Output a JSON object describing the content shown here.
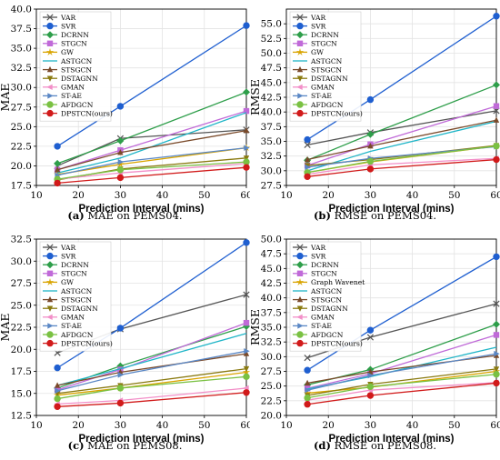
{
  "chart_data": [
    {
      "id": "a",
      "type": "line",
      "caption_letter": "(a)",
      "caption_text": "MAE on PEMS04.",
      "xlabel": "Prediction Interval (mins)",
      "ylabel": "MAE",
      "xlim": [
        10,
        60
      ],
      "ylim": [
        17.5,
        40.0
      ],
      "xticks": [
        "10",
        "20",
        "30",
        "40",
        "50",
        "60"
      ],
      "yticks": [
        "17.5",
        "20.0",
        "22.5",
        "25.0",
        "27.5",
        "30.0",
        "32.5",
        "35.0",
        "37.5",
        "40.0"
      ],
      "x": [
        15,
        30,
        60
      ],
      "series": [
        {
          "name": "VAR",
          "color": "#555555",
          "marker": "x",
          "values": [
            20.0,
            23.5,
            24.6
          ]
        },
        {
          "name": "SVR",
          "color": "#1f5fd0",
          "marker": "circle",
          "values": [
            22.5,
            27.6,
            37.9
          ]
        },
        {
          "name": "DCRNN",
          "color": "#2e9e4a",
          "marker": "diamond",
          "values": [
            20.3,
            23.2,
            29.4
          ]
        },
        {
          "name": "STGCN",
          "color": "#c06ad8",
          "marker": "square",
          "values": [
            19.5,
            22.0,
            27.0
          ]
        },
        {
          "name": "GW",
          "color": "#d9a400",
          "marker": "star",
          "values": [
            18.9,
            20.2,
            22.3
          ]
        },
        {
          "name": "ASTGCN",
          "color": "#1fb5c7",
          "marker": "none",
          "values": [
            19.1,
            21.0,
            26.8
          ]
        },
        {
          "name": "STSGCN",
          "color": "#7a4a2a",
          "marker": "triangle-up",
          "values": [
            19.5,
            21.7,
            24.5
          ]
        },
        {
          "name": "DSTAGNN",
          "color": "#8a7a10",
          "marker": "triangle-down",
          "values": [
            18.2,
            19.6,
            21.0
          ]
        },
        {
          "name": "GMAN",
          "color": "#f28fc8",
          "marker": "triangle-left",
          "values": [
            18.3,
            19.1,
            20.3
          ]
        },
        {
          "name": "ST-AE",
          "color": "#5a87c5",
          "marker": "triangle-right",
          "values": [
            18.8,
            20.5,
            22.3
          ]
        },
        {
          "name": "AFDGCN",
          "color": "#7ac143",
          "marker": "circle",
          "values": [
            18.3,
            19.5,
            20.5
          ]
        },
        {
          "name": "DPSTCN(ours)",
          "color": "#d11a1a",
          "marker": "circle",
          "values": [
            17.8,
            18.5,
            19.8
          ]
        }
      ]
    },
    {
      "id": "b",
      "type": "line",
      "caption_letter": "(b)",
      "caption_text": "RMSE on PEMS04.",
      "xlabel": "Prediction Interval (mins)",
      "ylabel": "RMSE",
      "xlim": [
        10,
        60
      ],
      "ylim": [
        27.5,
        57.5
      ],
      "xticks": [
        "10",
        "20",
        "30",
        "40",
        "50",
        "60"
      ],
      "yticks": [
        "27.5",
        "30.0",
        "32.5",
        "35.0",
        "37.5",
        "40.0",
        "42.5",
        "45.0",
        "47.5",
        "50.0",
        "52.5",
        "55.0"
      ],
      "x": [
        15,
        30,
        60
      ],
      "series": [
        {
          "name": "VAR",
          "color": "#555555",
          "marker": "x",
          "values": [
            34.4,
            36.5,
            40.2
          ]
        },
        {
          "name": "SVR",
          "color": "#1f5fd0",
          "marker": "circle",
          "values": [
            35.3,
            42.1,
            56.3
          ]
        },
        {
          "name": "DCRNN",
          "color": "#2e9e4a",
          "marker": "diamond",
          "values": [
            31.8,
            36.2,
            44.6
          ]
        },
        {
          "name": "STGCN",
          "color": "#c06ad8",
          "marker": "square",
          "values": [
            30.9,
            34.5,
            41.0
          ]
        },
        {
          "name": "GW",
          "color": "#d9a400",
          "marker": "star",
          "values": [
            29.7,
            31.5,
            34.2
          ]
        },
        {
          "name": "ASTGCN",
          "color": "#1fb5c7",
          "marker": "none",
          "values": [
            30.0,
            33.3,
            38.4
          ]
        },
        {
          "name": "STSGCN",
          "color": "#7a4a2a",
          "marker": "triangle-up",
          "values": [
            31.9,
            34.2,
            38.6
          ]
        },
        {
          "name": "DSTAGNN",
          "color": "#8a7a10",
          "marker": "triangle-down",
          "values": [
            30.9,
            31.9,
            34.3
          ]
        },
        {
          "name": "GMAN",
          "color": "#f28fc8",
          "marker": "triangle-left",
          "values": [
            29.4,
            31.0,
            32.1
          ]
        },
        {
          "name": "ST-AE",
          "color": "#5a87c5",
          "marker": "triangle-right",
          "values": [
            30.6,
            32.1,
            34.1
          ]
        },
        {
          "name": "AFDGCN",
          "color": "#7ac143",
          "marker": "circle",
          "values": [
            29.7,
            31.6,
            34.2
          ]
        },
        {
          "name": "DPSTCN(ours)",
          "color": "#d11a1a",
          "marker": "circle",
          "values": [
            29.0,
            30.3,
            31.9
          ]
        }
      ]
    },
    {
      "id": "c",
      "type": "line",
      "caption_letter": "(c)",
      "caption_text": "MAE on PEMS08.",
      "xlabel": "Prediction Interval (mins)",
      "ylabel": "MAE",
      "xlim": [
        10,
        60
      ],
      "ylim": [
        12.5,
        32.5
      ],
      "xticks": [
        "10",
        "20",
        "30",
        "40",
        "50",
        "60"
      ],
      "yticks": [
        "12.5",
        "15.0",
        "17.5",
        "20.0",
        "22.5",
        "25.0",
        "27.5",
        "30.0",
        "32.5"
      ],
      "x": [
        15,
        30,
        60
      ],
      "series": [
        {
          "name": "VAR",
          "color": "#555555",
          "marker": "x",
          "values": [
            19.6,
            22.3,
            26.2
          ]
        },
        {
          "name": "SVR",
          "color": "#1f5fd0",
          "marker": "circle",
          "values": [
            17.9,
            22.4,
            32.1
          ]
        },
        {
          "name": "DCRNN",
          "color": "#2e9e4a",
          "marker": "diamond",
          "values": [
            15.6,
            18.1,
            22.6
          ]
        },
        {
          "name": "STGCN",
          "color": "#c06ad8",
          "marker": "square",
          "values": [
            15.4,
            17.7,
            23.0
          ]
        },
        {
          "name": "GW",
          "color": "#d9a400",
          "marker": "star",
          "values": [
            14.8,
            15.6,
            17.4
          ]
        },
        {
          "name": "ASTGCN",
          "color": "#1fb5c7",
          "marker": "none",
          "values": [
            15.9,
            17.8,
            21.8
          ]
        },
        {
          "name": "STSGCN",
          "color": "#7a4a2a",
          "marker": "triangle-up",
          "values": [
            15.9,
            17.4,
            19.5
          ]
        },
        {
          "name": "DSTAGNN",
          "color": "#8a7a10",
          "marker": "triangle-down",
          "values": [
            15.0,
            15.9,
            17.8
          ]
        },
        {
          "name": "GMAN",
          "color": "#f28fc8",
          "marker": "triangle-left",
          "values": [
            13.8,
            14.2,
            15.6
          ]
        },
        {
          "name": "ST-AE",
          "color": "#5a87c5",
          "marker": "triangle-right",
          "values": [
            15.3,
            17.1,
            19.8
          ]
        },
        {
          "name": "AFDGCN",
          "color": "#7ac143",
          "marker": "circle",
          "values": [
            14.4,
            15.6,
            16.9
          ]
        },
        {
          "name": "DPSTCN(ours)",
          "color": "#d11a1a",
          "marker": "circle",
          "values": [
            13.5,
            13.9,
            15.1
          ]
        }
      ]
    },
    {
      "id": "d",
      "type": "line",
      "caption_letter": "(d)",
      "caption_text": "RMSE on PEMS08.",
      "xlabel": "Prediction Interval (mins)",
      "ylabel": "RMSE",
      "xlim": [
        10,
        60
      ],
      "ylim": [
        20.0,
        50.0
      ],
      "xticks": [
        "10",
        "20",
        "30",
        "40",
        "50",
        "60"
      ],
      "yticks": [
        "20.0",
        "22.5",
        "25.0",
        "27.5",
        "30.0",
        "32.5",
        "35.0",
        "37.5",
        "40.0",
        "42.5",
        "45.0",
        "47.5",
        "50.0"
      ],
      "x": [
        15,
        30,
        60
      ],
      "series": [
        {
          "name": "VAR",
          "color": "#555555",
          "marker": "x",
          "values": [
            29.8,
            33.3,
            39.0
          ]
        },
        {
          "name": "SVR",
          "color": "#1f5fd0",
          "marker": "circle",
          "values": [
            27.7,
            34.5,
            47.0
          ]
        },
        {
          "name": "DCRNN",
          "color": "#2e9e4a",
          "marker": "diamond",
          "values": [
            25.2,
            27.8,
            35.5
          ]
        },
        {
          "name": "STGCN",
          "color": "#c06ad8",
          "marker": "square",
          "values": [
            24.6,
            27.1,
            33.7
          ]
        },
        {
          "name": "Graph Wavenet",
          "color": "#d9a400",
          "marker": "star",
          "values": [
            23.8,
            24.8,
            27.5
          ]
        },
        {
          "name": "ASTGCN",
          "color": "#1fb5c7",
          "marker": "none",
          "values": [
            24.5,
            26.6,
            31.6
          ]
        },
        {
          "name": "STSGCN",
          "color": "#7a4a2a",
          "marker": "triangle-up",
          "values": [
            25.5,
            27.4,
            30.2
          ]
        },
        {
          "name": "DSTAGNN",
          "color": "#8a7a10",
          "marker": "triangle-down",
          "values": [
            23.4,
            25.3,
            27.9
          ]
        },
        {
          "name": "GMAN",
          "color": "#f28fc8",
          "marker": "triangle-left",
          "values": [
            22.6,
            24.3,
            25.6
          ]
        },
        {
          "name": "ST-AE",
          "color": "#5a87c5",
          "marker": "triangle-right",
          "values": [
            24.3,
            26.8,
            30.5
          ]
        },
        {
          "name": "AFDGCN",
          "color": "#7ac143",
          "marker": "circle",
          "values": [
            23.0,
            24.9,
            27.0
          ]
        },
        {
          "name": "DPSTCN(ours)",
          "color": "#d11a1a",
          "marker": "circle",
          "values": [
            21.9,
            23.4,
            25.5
          ]
        }
      ]
    }
  ]
}
